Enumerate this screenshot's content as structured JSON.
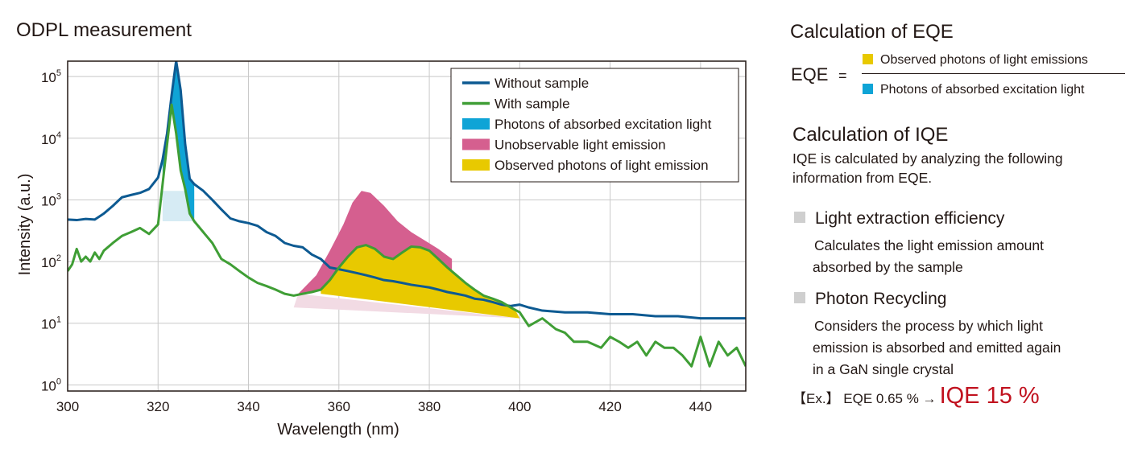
{
  "chart_data": {
    "type": "line",
    "title": "ODPL measurement",
    "xlabel": "Wavelength (nm)",
    "ylabel": "Intensity (a.u.)",
    "xlim": [
      300,
      450
    ],
    "ylim_log10": [
      -0.1,
      5.25
    ],
    "y_scale": "log",
    "grid": true,
    "legend_position": "top-right",
    "x_ticks": [
      "300",
      "320",
      "340",
      "360",
      "380",
      "400",
      "420",
      "440"
    ],
    "x_tick_values": [
      300,
      320,
      340,
      360,
      380,
      400,
      420,
      440
    ],
    "y_tick_values": [
      1,
      10,
      100,
      1000,
      10000,
      100000
    ],
    "y_tick_labels": [
      {
        "base": "10",
        "exp": "0"
      },
      {
        "base": "10",
        "exp": "1"
      },
      {
        "base": "10",
        "exp": "2"
      },
      {
        "base": "10",
        "exp": "3"
      },
      {
        "base": "10",
        "exp": "4"
      },
      {
        "base": "10",
        "exp": "5"
      }
    ],
    "colors": {
      "without": "#0d5a92",
      "with": "#3f9e35",
      "absorbed": "#0fa4d6",
      "unobservable": "#d55f8f",
      "observed": "#e8c900"
    },
    "series": [
      {
        "name": "Without sample",
        "x": [
          300,
          302,
          304,
          306,
          308,
          310,
          312,
          314,
          316,
          318,
          320,
          321,
          322,
          323,
          324,
          325,
          326,
          327,
          328,
          330,
          332,
          334,
          336,
          338,
          340,
          342,
          344,
          346,
          348,
          350,
          352,
          354,
          356,
          358,
          360,
          362,
          364,
          366,
          368,
          370,
          372,
          374,
          376,
          378,
          380,
          382,
          384,
          386,
          388,
          390,
          392,
          394,
          396,
          398,
          400,
          402,
          405,
          410,
          415,
          420,
          425,
          430,
          435,
          440,
          445,
          450
        ],
        "y": [
          480,
          470,
          490,
          480,
          600,
          800,
          1100,
          1200,
          1300,
          1500,
          2300,
          4500,
          12000,
          50000,
          180000,
          60000,
          8000,
          2200,
          1800,
          1400,
          1000,
          700,
          500,
          450,
          420,
          380,
          300,
          260,
          200,
          180,
          170,
          130,
          110,
          80,
          75,
          70,
          65,
          60,
          55,
          50,
          48,
          45,
          42,
          40,
          38,
          35,
          32,
          30,
          28,
          25,
          24,
          22,
          20,
          19,
          20,
          18,
          16,
          15,
          15,
          14,
          14,
          13,
          13,
          12,
          12,
          12
        ]
      },
      {
        "name": "With sample",
        "x": [
          300,
          301,
          302,
          303,
          304,
          305,
          306,
          307,
          308,
          310,
          312,
          314,
          316,
          318,
          320,
          321,
          322,
          323,
          324,
          325,
          326,
          327,
          328,
          330,
          332,
          334,
          336,
          338,
          340,
          342,
          344,
          346,
          348,
          350,
          352,
          354,
          356,
          358,
          360,
          362,
          364,
          366,
          368,
          370,
          372,
          374,
          376,
          378,
          380,
          382,
          384,
          386,
          388,
          390,
          392,
          394,
          396,
          398,
          400,
          402,
          405,
          408,
          410,
          412,
          415,
          418,
          420,
          422,
          424,
          426,
          428,
          430,
          432,
          434,
          436,
          438,
          440,
          442,
          444,
          446,
          448,
          450
        ],
        "y": [
          70,
          90,
          160,
          100,
          120,
          100,
          140,
          110,
          150,
          200,
          260,
          300,
          350,
          280,
          400,
          1800,
          8000,
          35000,
          12000,
          3000,
          1500,
          600,
          450,
          300,
          200,
          110,
          90,
          70,
          55,
          45,
          40,
          35,
          30,
          28,
          30,
          32,
          35,
          50,
          80,
          120,
          170,
          185,
          160,
          120,
          110,
          140,
          175,
          170,
          150,
          110,
          80,
          60,
          45,
          35,
          28,
          25,
          22,
          18,
          15,
          9,
          12,
          8,
          7,
          5,
          5,
          4,
          6,
          5,
          4,
          5,
          3,
          5,
          4,
          4,
          3,
          2,
          6,
          2,
          5,
          3,
          4,
          2
        ]
      }
    ],
    "legend": [
      {
        "label": "Without sample",
        "kind": "line",
        "color": "#0d5a92"
      },
      {
        "label": "With sample",
        "kind": "line",
        "color": "#3f9e35"
      },
      {
        "label": "Photons of absorbed excitation light",
        "kind": "box",
        "color": "#0fa4d6"
      },
      {
        "label": "Unobservable light emission",
        "kind": "box",
        "color": "#d55f8f"
      },
      {
        "label": "Observed photons of light emission",
        "kind": "box",
        "color": "#e8c900"
      }
    ]
  },
  "calc_eqe": {
    "title": "Calculation of EQE",
    "label": "EQE",
    "equals": "=",
    "numerator": "Observed photons of light emissions",
    "denominator": "Photons of absorbed excitation light",
    "numerator_color": "#e8c900",
    "denominator_color": "#0fa4d6"
  },
  "calc_iqe": {
    "title": "Calculation of IQE",
    "desc_line1": "IQE is calculated by analyzing the following",
    "desc_line2": "information from EQE.",
    "items": [
      {
        "title": "Light extraction efficiency",
        "desc1": "Calculates the light emission amount",
        "desc2": "absorbed by the sample",
        "desc3": ""
      },
      {
        "title": "Photon Recycling",
        "desc1": "Considers the process by which light",
        "desc2": "emission is absorbed and emitted again",
        "desc3": "in a GaN single crystal"
      }
    ],
    "example_prefix": "【Ex.】 EQE 0.65 % →",
    "example_result": "IQE 15 %",
    "example_result_color": "#c1121f"
  }
}
